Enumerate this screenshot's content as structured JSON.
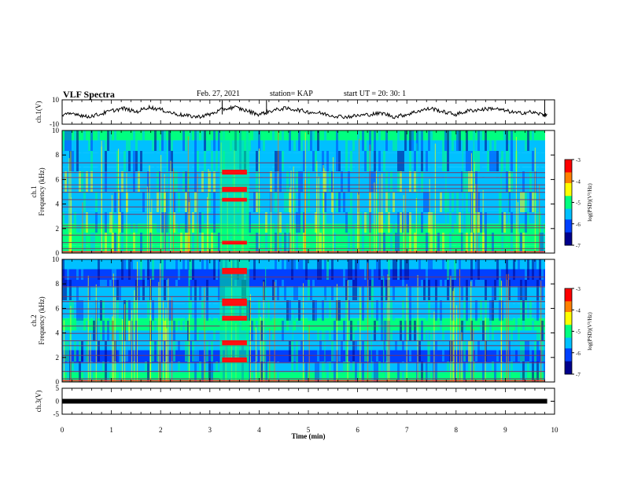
{
  "header": {
    "title": "VLF Spectra",
    "date": "Feb. 27, 2021",
    "station": "station= KAP",
    "start": "start UT = 20: 30: 1"
  },
  "chart_data": [
    {
      "type": "line",
      "ylabel": "ch.1(V)",
      "ylim": [
        -10,
        10
      ],
      "yticks": [
        "10",
        "-10"
      ],
      "x": [
        0,
        0.25,
        0.5,
        0.75,
        1,
        1.25,
        1.5,
        1.75,
        2,
        2.25,
        2.5,
        2.75,
        3,
        3.25,
        3.5,
        3.75,
        4,
        4.25,
        4.5,
        4.75,
        5,
        5.25,
        5.5,
        5.75,
        6,
        6.25,
        6.5,
        6.75,
        7,
        7.25,
        7.5,
        7.75,
        8,
        8.25,
        8.5,
        8.75,
        9,
        9.25,
        9.5,
        9.75,
        9.85
      ],
      "values": [
        -3,
        -1,
        -4,
        -2,
        1,
        3,
        0,
        4,
        2,
        -1,
        -3,
        -4,
        -2,
        2,
        4,
        1,
        -2,
        1,
        3,
        2,
        0,
        -1,
        -3,
        -4,
        -3,
        -2,
        -1,
        -4,
        -2,
        1,
        3,
        0,
        -2,
        1,
        2,
        3,
        1,
        -1,
        0,
        -2,
        -3
      ]
    },
    {
      "type": "heatmap",
      "ylabel": "ch.1\nFrequency (kHz)",
      "ylim": [
        0,
        10
      ],
      "yticks": [
        "0",
        "2",
        "4",
        "6",
        "8",
        "10"
      ],
      "colorbar_label": "log(PSD)(V²/Hz)",
      "colorbar_ticks": [
        "-3",
        "-4",
        "-5",
        "-6",
        "-7"
      ],
      "colorscale": [
        "#00008c",
        "#0040ff",
        "#00c0ff",
        "#00ff80",
        "#ffff00",
        "#ff8000",
        "#ff0000",
        "#ffffff"
      ]
    },
    {
      "type": "heatmap",
      "ylabel": "ch.2\nFrequency (kHz)",
      "ylim": [
        0,
        10
      ],
      "yticks": [
        "0",
        "2",
        "4",
        "6",
        "8",
        "10"
      ],
      "colorbar_label": "log(PSD)(V²/Hz)",
      "colorbar_ticks": [
        "-3",
        "-4",
        "-5",
        "-6",
        "-7"
      ],
      "colorscale": [
        "#00008c",
        "#0040ff",
        "#00c0ff",
        "#00ff80",
        "#ffff00",
        "#ff8000",
        "#ff0000",
        "#ffffff"
      ]
    },
    {
      "type": "line",
      "ylabel": "ch.3(V)",
      "ylim": [
        -5,
        5
      ],
      "yticks": [
        "5",
        "0",
        "-5"
      ],
      "x": [
        0,
        9.85
      ],
      "values": [
        0,
        0
      ]
    }
  ],
  "xaxis": {
    "label": "Time (min)",
    "xlim": [
      0,
      10
    ],
    "ticks": [
      "0",
      "1",
      "2",
      "3",
      "4",
      "5",
      "6",
      "7",
      "8",
      "9",
      "10"
    ]
  }
}
